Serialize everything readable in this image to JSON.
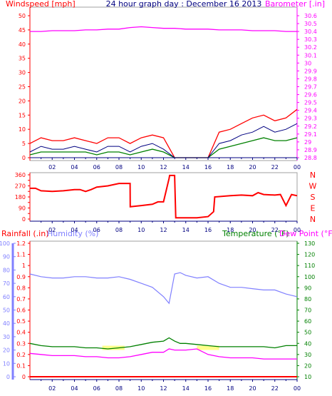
{
  "header": {
    "left": "Windspeed [mph]",
    "center": "24 hour graph day : December 16 2013",
    "right": "Barometer [.in]"
  },
  "panel3_header": {
    "rainfall": "Rainfall (.in)",
    "humidity": "Humidity (%)",
    "temperature": "Temperature (°F)",
    "dewpoint": "Dew Point (°F)"
  },
  "colors": {
    "wind_gust": "#ff0000",
    "wind_avg": "#008000",
    "wind_line": "#000080",
    "barometer": "#ff00ff",
    "direction": "#ff0000",
    "rainfall": "#ff0000",
    "humidity": "#8080ff",
    "temperature": "#008000",
    "dewpoint": "#ff00ff",
    "time_axis": "#000080",
    "highlight": "#ffff80"
  },
  "chart_data": [
    {
      "type": "line",
      "name": "wind-and-barometer",
      "ylabel_left": "Windspeed [mph]",
      "ylabel_right": "Barometer [.in]",
      "ylim_left": [
        0,
        50
      ],
      "yticks_left": [
        0,
        5,
        10,
        15,
        20,
        25,
        30,
        35,
        40,
        45,
        50
      ],
      "ylim_right": [
        28.8,
        30.6
      ],
      "yticks_right": [
        "28.8",
        "28.9",
        "29",
        "29.1",
        "29.2",
        "29.3",
        "29.4",
        "29.5",
        "29.6",
        "29.7",
        "29.8",
        "29.9",
        "30",
        "30.1",
        "30.2",
        "30.3",
        "30.4",
        "30.5",
        "30.6"
      ],
      "x_tick_labels": [
        "02",
        "04",
        "06",
        "08",
        "10",
        "12",
        "14",
        "16",
        "18",
        "20",
        "22",
        "00"
      ],
      "x_hours": [
        0,
        1,
        2,
        3,
        4,
        5,
        6,
        7,
        8,
        9,
        10,
        11,
        12,
        13,
        14,
        15,
        16,
        17,
        18,
        19,
        20,
        21,
        22,
        23,
        24
      ],
      "series": [
        {
          "key": "gust",
          "values": [
            5,
            7,
            6,
            6,
            7,
            6,
            5,
            7,
            7,
            5,
            7,
            8,
            7,
            0,
            0,
            0,
            0,
            9,
            10,
            12,
            14,
            15,
            13,
            14,
            17
          ]
        },
        {
          "key": "avg_line",
          "values": [
            2,
            4,
            3,
            3,
            4,
            3,
            2,
            4,
            4,
            2,
            4,
            5,
            3,
            0,
            0,
            0,
            0,
            5,
            6,
            8,
            9,
            11,
            9,
            10,
            12
          ]
        },
        {
          "key": "avg",
          "values": [
            1,
            2,
            2,
            2,
            2,
            2,
            1,
            2,
            2,
            1,
            2,
            3,
            2,
            0,
            0,
            0,
            0,
            3,
            4,
            5,
            6,
            7,
            6,
            6,
            7
          ]
        },
        {
          "key": "barometer",
          "values": [
            30.4,
            30.4,
            30.41,
            30.41,
            30.41,
            30.42,
            30.42,
            30.43,
            30.43,
            30.45,
            30.46,
            30.45,
            30.44,
            30.44,
            30.43,
            30.43,
            30.43,
            30.42,
            30.42,
            30.42,
            30.41,
            30.41,
            30.41,
            30.4,
            30.4
          ]
        }
      ]
    },
    {
      "type": "line",
      "name": "wind-direction",
      "ylim": [
        0,
        360
      ],
      "yticks": [
        0,
        45,
        90,
        135,
        180,
        225,
        270,
        315,
        360
      ],
      "ytick_labels": [
        "0",
        "",
        "90",
        "",
        "180",
        "",
        "270",
        "",
        "360"
      ],
      "direction_labels": [
        "N",
        "W",
        "S",
        "E",
        "N"
      ],
      "x_tick_labels": [
        "02",
        "04",
        "06",
        "08",
        "10",
        "12",
        "14",
        "16",
        "18",
        "20",
        "22",
        "00"
      ],
      "x_hours": [
        0,
        0.5,
        1,
        2,
        3,
        4,
        4.5,
        5,
        5.5,
        6,
        7,
        8,
        9,
        9.01,
        10,
        11,
        11.5,
        12,
        12.5,
        12.55,
        13,
        13.1,
        15,
        16,
        16.5,
        16.6,
        18,
        19,
        20,
        20.5,
        21,
        22,
        22.5,
        23,
        23.5,
        24
      ],
      "values": [
        250,
        250,
        230,
        225,
        230,
        240,
        240,
        225,
        240,
        260,
        270,
        290,
        290,
        100,
        110,
        120,
        140,
        140,
        330,
        355,
        355,
        10,
        10,
        20,
        60,
        180,
        190,
        195,
        190,
        215,
        200,
        195,
        200,
        110,
        200,
        190
      ]
    },
    {
      "type": "line",
      "name": "rain-humidity-temperature-dewpoint",
      "ylim_rain": [
        0,
        1.2
      ],
      "yticks_rain": [
        "0",
        "0.1",
        "0.2",
        "0.3",
        "0.4",
        "0.5",
        "0.6",
        "0.7",
        "0.8",
        "0.9",
        "1",
        "1.1",
        "1.2"
      ],
      "ylim_humidity": [
        0,
        100
      ],
      "yticks_humidity": [
        "0",
        "10",
        "20",
        "30",
        "40",
        "50",
        "60",
        "70",
        "80",
        "90",
        "100"
      ],
      "ylim_temp": [
        10,
        130
      ],
      "yticks_temp": [
        "10",
        "20",
        "30",
        "40",
        "50",
        "60",
        "70",
        "80",
        "90",
        "100",
        "110",
        "120",
        "130"
      ],
      "x_tick_labels": [
        "02",
        "04",
        "06",
        "08",
        "10",
        "12",
        "14",
        "16",
        "18",
        "20",
        "22",
        "00"
      ],
      "x_hours": [
        0,
        1,
        2,
        3,
        4,
        5,
        6,
        7,
        8,
        9,
        10,
        11,
        12,
        12.5,
        13,
        13.5,
        14,
        15,
        16,
        17,
        18,
        19,
        20,
        21,
        22,
        23,
        24
      ],
      "series": [
        {
          "key": "rainfall",
          "values": [
            0,
            0,
            0,
            0,
            0,
            0,
            0,
            0,
            0,
            0,
            0,
            0,
            0,
            0,
            0,
            0,
            0,
            0,
            0,
            0,
            0,
            0,
            0,
            0,
            0,
            0,
            0
          ]
        },
        {
          "key": "humidity",
          "values": [
            77,
            75,
            74,
            74,
            75,
            75,
            74,
            74,
            75,
            73,
            70,
            67,
            60,
            55,
            77,
            78,
            76,
            74,
            75,
            70,
            67,
            67,
            66,
            65,
            65,
            62,
            60
          ]
        },
        {
          "key": "temperature",
          "values": [
            40,
            38,
            37,
            37,
            37,
            36,
            36,
            35,
            36,
            37,
            39,
            41,
            42,
            45,
            42,
            40,
            40,
            39,
            38,
            37,
            37,
            37,
            37,
            37,
            36,
            38,
            38
          ]
        },
        {
          "key": "dewpoint",
          "values": [
            31,
            30,
            29,
            29,
            29,
            28,
            28,
            27,
            27,
            28,
            30,
            32,
            32,
            35,
            34,
            34,
            34,
            35,
            30,
            28,
            27,
            27,
            27,
            26,
            26,
            26,
            26
          ]
        }
      ]
    }
  ]
}
